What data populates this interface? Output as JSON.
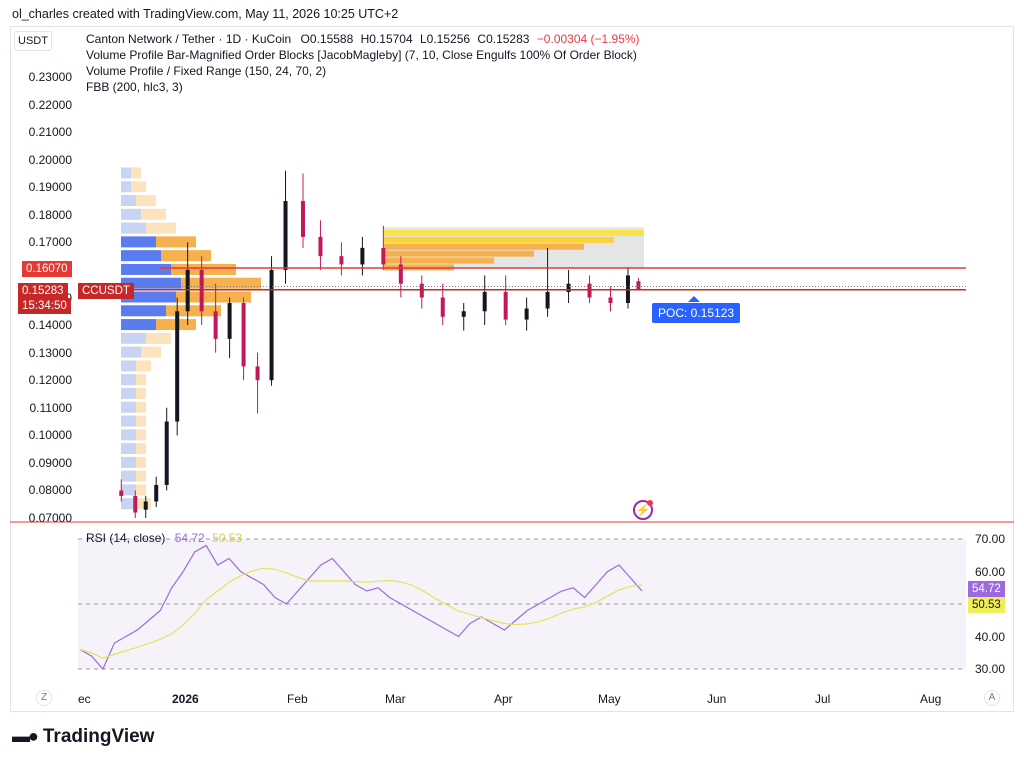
{
  "header": {
    "credit": "ol_charles created with TradingView.com, May 11, 2026 10:25 UTC+2"
  },
  "toolbar": {
    "currency_button": "USDT"
  },
  "legend": {
    "symbol": "Canton Network / Tether · 1D · KuCoin",
    "o": "O0.15588",
    "h": "H0.15704",
    "l": "L0.15256",
    "c": "C0.15283",
    "change": "−0.00304 (−1.95%)",
    "ind1": "Volume Profile Bar-Magnified Order Blocks [JacobMagleby] (7, 10, Close Engulfs 100% Of Order Block)",
    "ind2": "Volume Profile / Fixed Range (150, 24, 70, 2)",
    "ind3": "FBB (200, hlc3, 3)"
  },
  "price_axis": [
    "0.23000",
    "0.22000",
    "0.21000",
    "0.20000",
    "0.19000",
    "0.18000",
    "0.17000",
    "0.16000",
    "0.15000",
    "0.14000",
    "0.13000",
    "0.12000",
    "0.11000",
    "0.10000",
    "0.09000",
    "0.08000",
    "0.07000"
  ],
  "tags": {
    "resistance": "0.16070",
    "last_price": "0.15283",
    "countdown": "15:34:50",
    "symbol_tag": "CCUSDT",
    "poc": "POC: 0.15123"
  },
  "rsi": {
    "label": "RSI (14, close)",
    "v1": "54.72",
    "v2": "50.53",
    "axis": [
      "70.00",
      "60.00",
      "40.00",
      "30.00"
    ],
    "tag_rsi": "54.72",
    "tag_ma": "50.53"
  },
  "time_axis": [
    "ec",
    "2026",
    "Feb",
    "Mar",
    "Apr",
    "May",
    "Jun",
    "Jul",
    "Aug"
  ],
  "corner": {
    "left": "Z",
    "right": "A"
  },
  "footer": {
    "brand": "TradingView"
  },
  "colors": {
    "up": "#131722",
    "down": "#c2185b",
    "rsi_line": "#9c6ade",
    "rsi_ma": "#e6e35a",
    "resistance": "#e53935",
    "poc": "#2962ff"
  },
  "chart_data": {
    "type": "candlestick",
    "title": "Canton Network / Tether · 1D · KuCoin",
    "ylim": [
      0.07,
      0.235
    ],
    "last_price": 0.15283,
    "resistance": 0.1607,
    "poc": 0.15123,
    "candles": [
      {
        "x": "2025-12-13",
        "o": 0.08,
        "h": 0.084,
        "l": 0.076,
        "c": 0.078
      },
      {
        "x": "2025-12-17",
        "o": 0.078,
        "h": 0.08,
        "l": 0.07,
        "c": 0.072
      },
      {
        "x": "2025-12-20",
        "o": 0.073,
        "h": 0.078,
        "l": 0.07,
        "c": 0.076
      },
      {
        "x": "2025-12-23",
        "o": 0.076,
        "h": 0.085,
        "l": 0.074,
        "c": 0.082
      },
      {
        "x": "2025-12-26",
        "o": 0.082,
        "h": 0.11,
        "l": 0.08,
        "c": 0.105
      },
      {
        "x": "2025-12-29",
        "o": 0.105,
        "h": 0.15,
        "l": 0.1,
        "c": 0.145
      },
      {
        "x": "2026-01-01",
        "o": 0.145,
        "h": 0.17,
        "l": 0.14,
        "c": 0.16
      },
      {
        "x": "2026-01-05",
        "o": 0.16,
        "h": 0.165,
        "l": 0.14,
        "c": 0.145
      },
      {
        "x": "2026-01-09",
        "o": 0.145,
        "h": 0.155,
        "l": 0.13,
        "c": 0.135
      },
      {
        "x": "2026-01-13",
        "o": 0.135,
        "h": 0.15,
        "l": 0.128,
        "c": 0.148
      },
      {
        "x": "2026-01-17",
        "o": 0.148,
        "h": 0.15,
        "l": 0.12,
        "c": 0.125
      },
      {
        "x": "2026-01-21",
        "o": 0.125,
        "h": 0.13,
        "l": 0.108,
        "c": 0.12
      },
      {
        "x": "2026-01-25",
        "o": 0.12,
        "h": 0.165,
        "l": 0.118,
        "c": 0.16
      },
      {
        "x": "2026-01-29",
        "o": 0.16,
        "h": 0.196,
        "l": 0.155,
        "c": 0.185
      },
      {
        "x": "2026-02-03",
        "o": 0.185,
        "h": 0.195,
        "l": 0.168,
        "c": 0.172
      },
      {
        "x": "2026-02-08",
        "o": 0.172,
        "h": 0.178,
        "l": 0.16,
        "c": 0.165
      },
      {
        "x": "2026-02-14",
        "o": 0.165,
        "h": 0.17,
        "l": 0.158,
        "c": 0.162
      },
      {
        "x": "2026-02-20",
        "o": 0.162,
        "h": 0.172,
        "l": 0.158,
        "c": 0.168
      },
      {
        "x": "2026-02-26",
        "o": 0.168,
        "h": 0.176,
        "l": 0.16,
        "c": 0.162
      },
      {
        "x": "2026-03-03",
        "o": 0.162,
        "h": 0.165,
        "l": 0.15,
        "c": 0.155
      },
      {
        "x": "2026-03-09",
        "o": 0.155,
        "h": 0.158,
        "l": 0.146,
        "c": 0.15
      },
      {
        "x": "2026-03-15",
        "o": 0.15,
        "h": 0.155,
        "l": 0.14,
        "c": 0.143
      },
      {
        "x": "2026-03-21",
        "o": 0.143,
        "h": 0.148,
        "l": 0.138,
        "c": 0.145
      },
      {
        "x": "2026-03-27",
        "o": 0.145,
        "h": 0.158,
        "l": 0.14,
        "c": 0.152
      },
      {
        "x": "2026-04-02",
        "o": 0.152,
        "h": 0.158,
        "l": 0.14,
        "c": 0.142
      },
      {
        "x": "2026-04-08",
        "o": 0.142,
        "h": 0.15,
        "l": 0.138,
        "c": 0.146
      },
      {
        "x": "2026-04-14",
        "o": 0.146,
        "h": 0.168,
        "l": 0.143,
        "c": 0.152
      },
      {
        "x": "2026-04-20",
        "o": 0.152,
        "h": 0.16,
        "l": 0.148,
        "c": 0.155
      },
      {
        "x": "2026-04-26",
        "o": 0.155,
        "h": 0.158,
        "l": 0.148,
        "c": 0.15
      },
      {
        "x": "2026-05-02",
        "o": 0.15,
        "h": 0.154,
        "l": 0.145,
        "c": 0.148
      },
      {
        "x": "2026-05-07",
        "o": 0.148,
        "h": 0.161,
        "l": 0.146,
        "c": 0.158
      },
      {
        "x": "2026-05-10",
        "o": 0.15588,
        "h": 0.15704,
        "l": 0.15256,
        "c": 0.15283
      }
    ],
    "volume_profile_left": [
      {
        "price": 0.195,
        "up": 0.02,
        "down": 0.02
      },
      {
        "price": 0.19,
        "up": 0.02,
        "down": 0.03
      },
      {
        "price": 0.185,
        "up": 0.03,
        "down": 0.04
      },
      {
        "price": 0.18,
        "up": 0.04,
        "down": 0.05
      },
      {
        "price": 0.175,
        "up": 0.05,
        "down": 0.06
      },
      {
        "price": 0.17,
        "up": 0.07,
        "down": 0.08
      },
      {
        "price": 0.165,
        "up": 0.08,
        "down": 0.1
      },
      {
        "price": 0.16,
        "up": 0.1,
        "down": 0.13
      },
      {
        "price": 0.155,
        "up": 0.12,
        "down": 0.16
      },
      {
        "price": 0.15,
        "up": 0.11,
        "down": 0.15
      },
      {
        "price": 0.145,
        "up": 0.09,
        "down": 0.11
      },
      {
        "price": 0.14,
        "up": 0.07,
        "down": 0.08
      },
      {
        "price": 0.135,
        "up": 0.05,
        "down": 0.05
      },
      {
        "price": 0.13,
        "up": 0.04,
        "down": 0.04
      },
      {
        "price": 0.125,
        "up": 0.03,
        "down": 0.03
      },
      {
        "price": 0.12,
        "up": 0.03,
        "down": 0.02
      },
      {
        "price": 0.115,
        "up": 0.03,
        "down": 0.02
      },
      {
        "price": 0.11,
        "up": 0.03,
        "down": 0.02
      },
      {
        "price": 0.105,
        "up": 0.03,
        "down": 0.02
      },
      {
        "price": 0.1,
        "up": 0.03,
        "down": 0.02
      },
      {
        "price": 0.095,
        "up": 0.03,
        "down": 0.02
      },
      {
        "price": 0.09,
        "up": 0.03,
        "down": 0.02
      },
      {
        "price": 0.085,
        "up": 0.03,
        "down": 0.02
      },
      {
        "price": 0.08,
        "up": 0.03,
        "down": 0.02
      },
      {
        "price": 0.075,
        "up": 0.03,
        "down": 0.03
      }
    ],
    "rsi_values": [
      36,
      34,
      30,
      38,
      40,
      42,
      45,
      48,
      55,
      60,
      66,
      68,
      62,
      64,
      60,
      58,
      56,
      52,
      50,
      54,
      58,
      62,
      64,
      60,
      56,
      54,
      55,
      52,
      50,
      48,
      46,
      44,
      42,
      40,
      44,
      46,
      44,
      42,
      45,
      48,
      50,
      52,
      54,
      55,
      52,
      56,
      60,
      62,
      58,
      54
    ]
  }
}
